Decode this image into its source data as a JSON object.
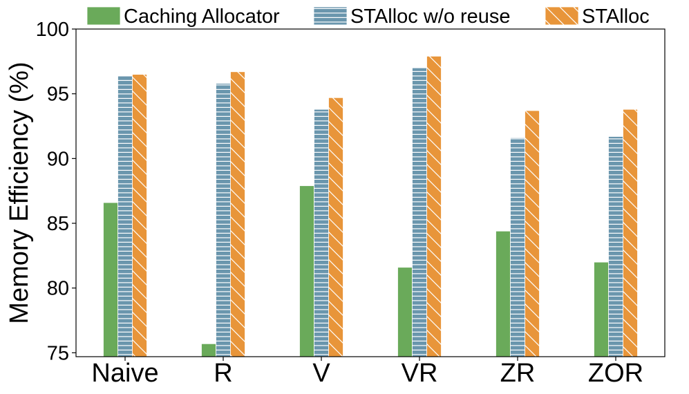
{
  "chart_data": {
    "type": "bar",
    "categories": [
      "Naive",
      "R",
      "V",
      "VR",
      "ZR",
      "ZOR"
    ],
    "series": [
      {
        "name": "Caching Allocator",
        "values": [
          86.6,
          75.7,
          87.9,
          81.6,
          84.4,
          82.0
        ],
        "color": "#6aaa5a",
        "pattern": "solid"
      },
      {
        "name": "STAlloc w/o reuse",
        "values": [
          96.4,
          95.8,
          93.8,
          97.0,
          91.6,
          91.7
        ],
        "color": "#6a96ad",
        "pattern": "horizontal"
      },
      {
        "name": "STAlloc",
        "values": [
          96.5,
          96.7,
          94.7,
          97.9,
          93.7,
          93.8
        ],
        "color": "#e8953a",
        "pattern": "diagonal"
      }
    ],
    "xlabel": "",
    "ylabel": "Memory Efficiency (%)",
    "ylim": [
      74.7,
      100
    ],
    "yticks": [
      75,
      80,
      85,
      90,
      95,
      100
    ],
    "grid": false,
    "legend_position": "top"
  }
}
